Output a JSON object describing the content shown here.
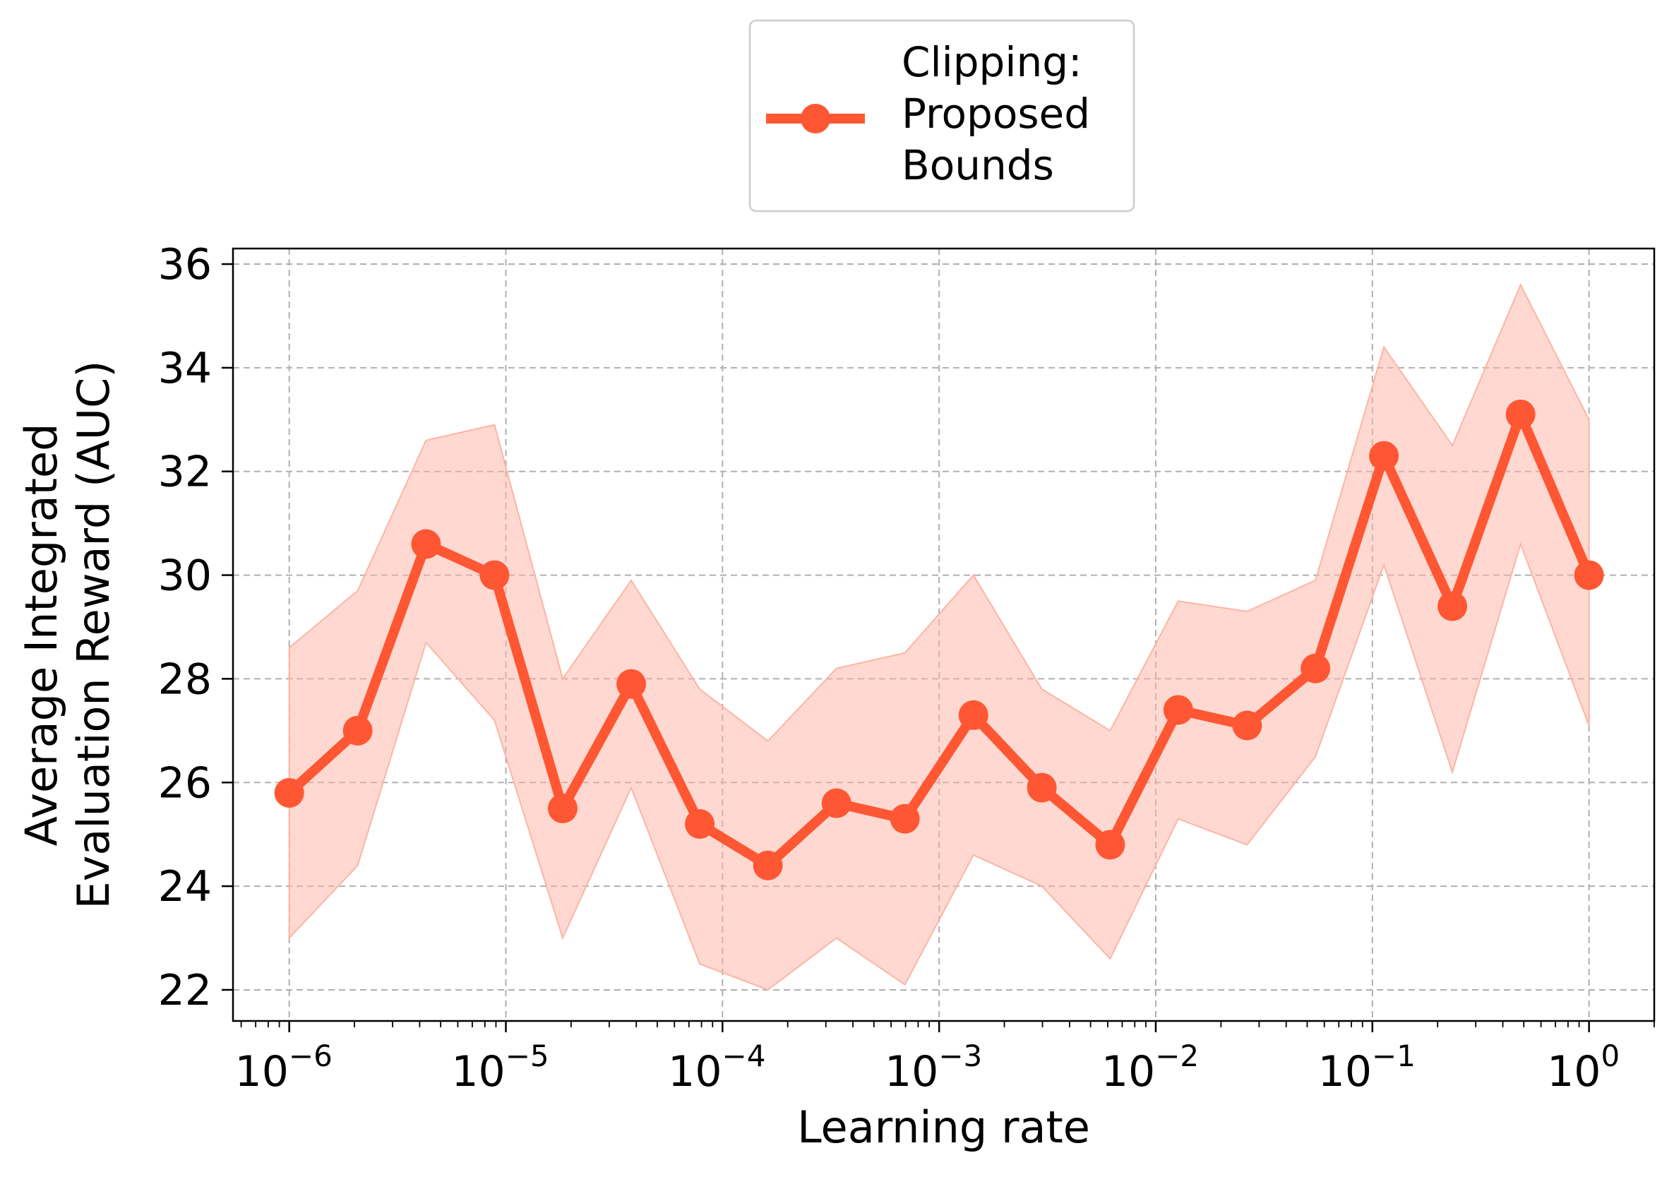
{
  "chart_data": {
    "type": "line",
    "xlabel": "Learning rate",
    "ylabel": [
      "Average Integrated",
      "Evaluation Reward (AUC)"
    ],
    "x_scale": "log",
    "xlim": [
      5.5e-07,
      2.0
    ],
    "ylim": [
      21.4,
      36.3
    ],
    "x_ticks": [
      {
        "value": 1e-06,
        "base": "10",
        "exp": "−6"
      },
      {
        "value": 1e-05,
        "base": "10",
        "exp": "−5"
      },
      {
        "value": 0.0001,
        "base": "10",
        "exp": "−4"
      },
      {
        "value": 0.001,
        "base": "10",
        "exp": "−3"
      },
      {
        "value": 0.01,
        "base": "10",
        "exp": "−2"
      },
      {
        "value": 0.1,
        "base": "10",
        "exp": "−1"
      },
      {
        "value": 1,
        "base": "10",
        "exp": "0"
      }
    ],
    "y_ticks": [
      22,
      24,
      26,
      28,
      30,
      32,
      34,
      36
    ],
    "grid": true,
    "legend_position": "top-center, above plot",
    "series": [
      {
        "name": [
          "Clipping:",
          "Proposed",
          "Bounds"
        ],
        "color": "#ff5733",
        "band_color": "#ffb3a3",
        "x": [
          1e-06,
          2.07e-06,
          4.28e-06,
          8.86e-06,
          1.83e-05,
          3.79e-05,
          7.85e-05,
          0.000162,
          0.000336,
          0.000695,
          0.00144,
          0.00298,
          0.00616,
          0.0127,
          0.0264,
          0.0546,
          0.113,
          0.234,
          0.483,
          1.0
        ],
        "y": [
          25.8,
          27.0,
          30.6,
          30.0,
          25.5,
          27.9,
          25.2,
          24.4,
          25.6,
          25.3,
          27.3,
          25.9,
          24.8,
          27.4,
          27.1,
          28.2,
          32.3,
          29.4,
          33.1,
          30.0
        ],
        "lower": [
          23.0,
          24.4,
          28.7,
          27.2,
          23.0,
          25.9,
          22.5,
          22.0,
          23.0,
          22.1,
          24.6,
          24.0,
          22.6,
          25.3,
          24.8,
          26.5,
          30.2,
          26.2,
          30.6,
          27.1
        ],
        "upper": [
          28.6,
          29.7,
          32.6,
          32.9,
          28.0,
          29.9,
          27.8,
          26.8,
          28.2,
          28.5,
          30.0,
          27.8,
          27.0,
          29.5,
          29.3,
          29.9,
          34.4,
          32.5,
          35.6,
          33.0
        ]
      }
    ]
  }
}
